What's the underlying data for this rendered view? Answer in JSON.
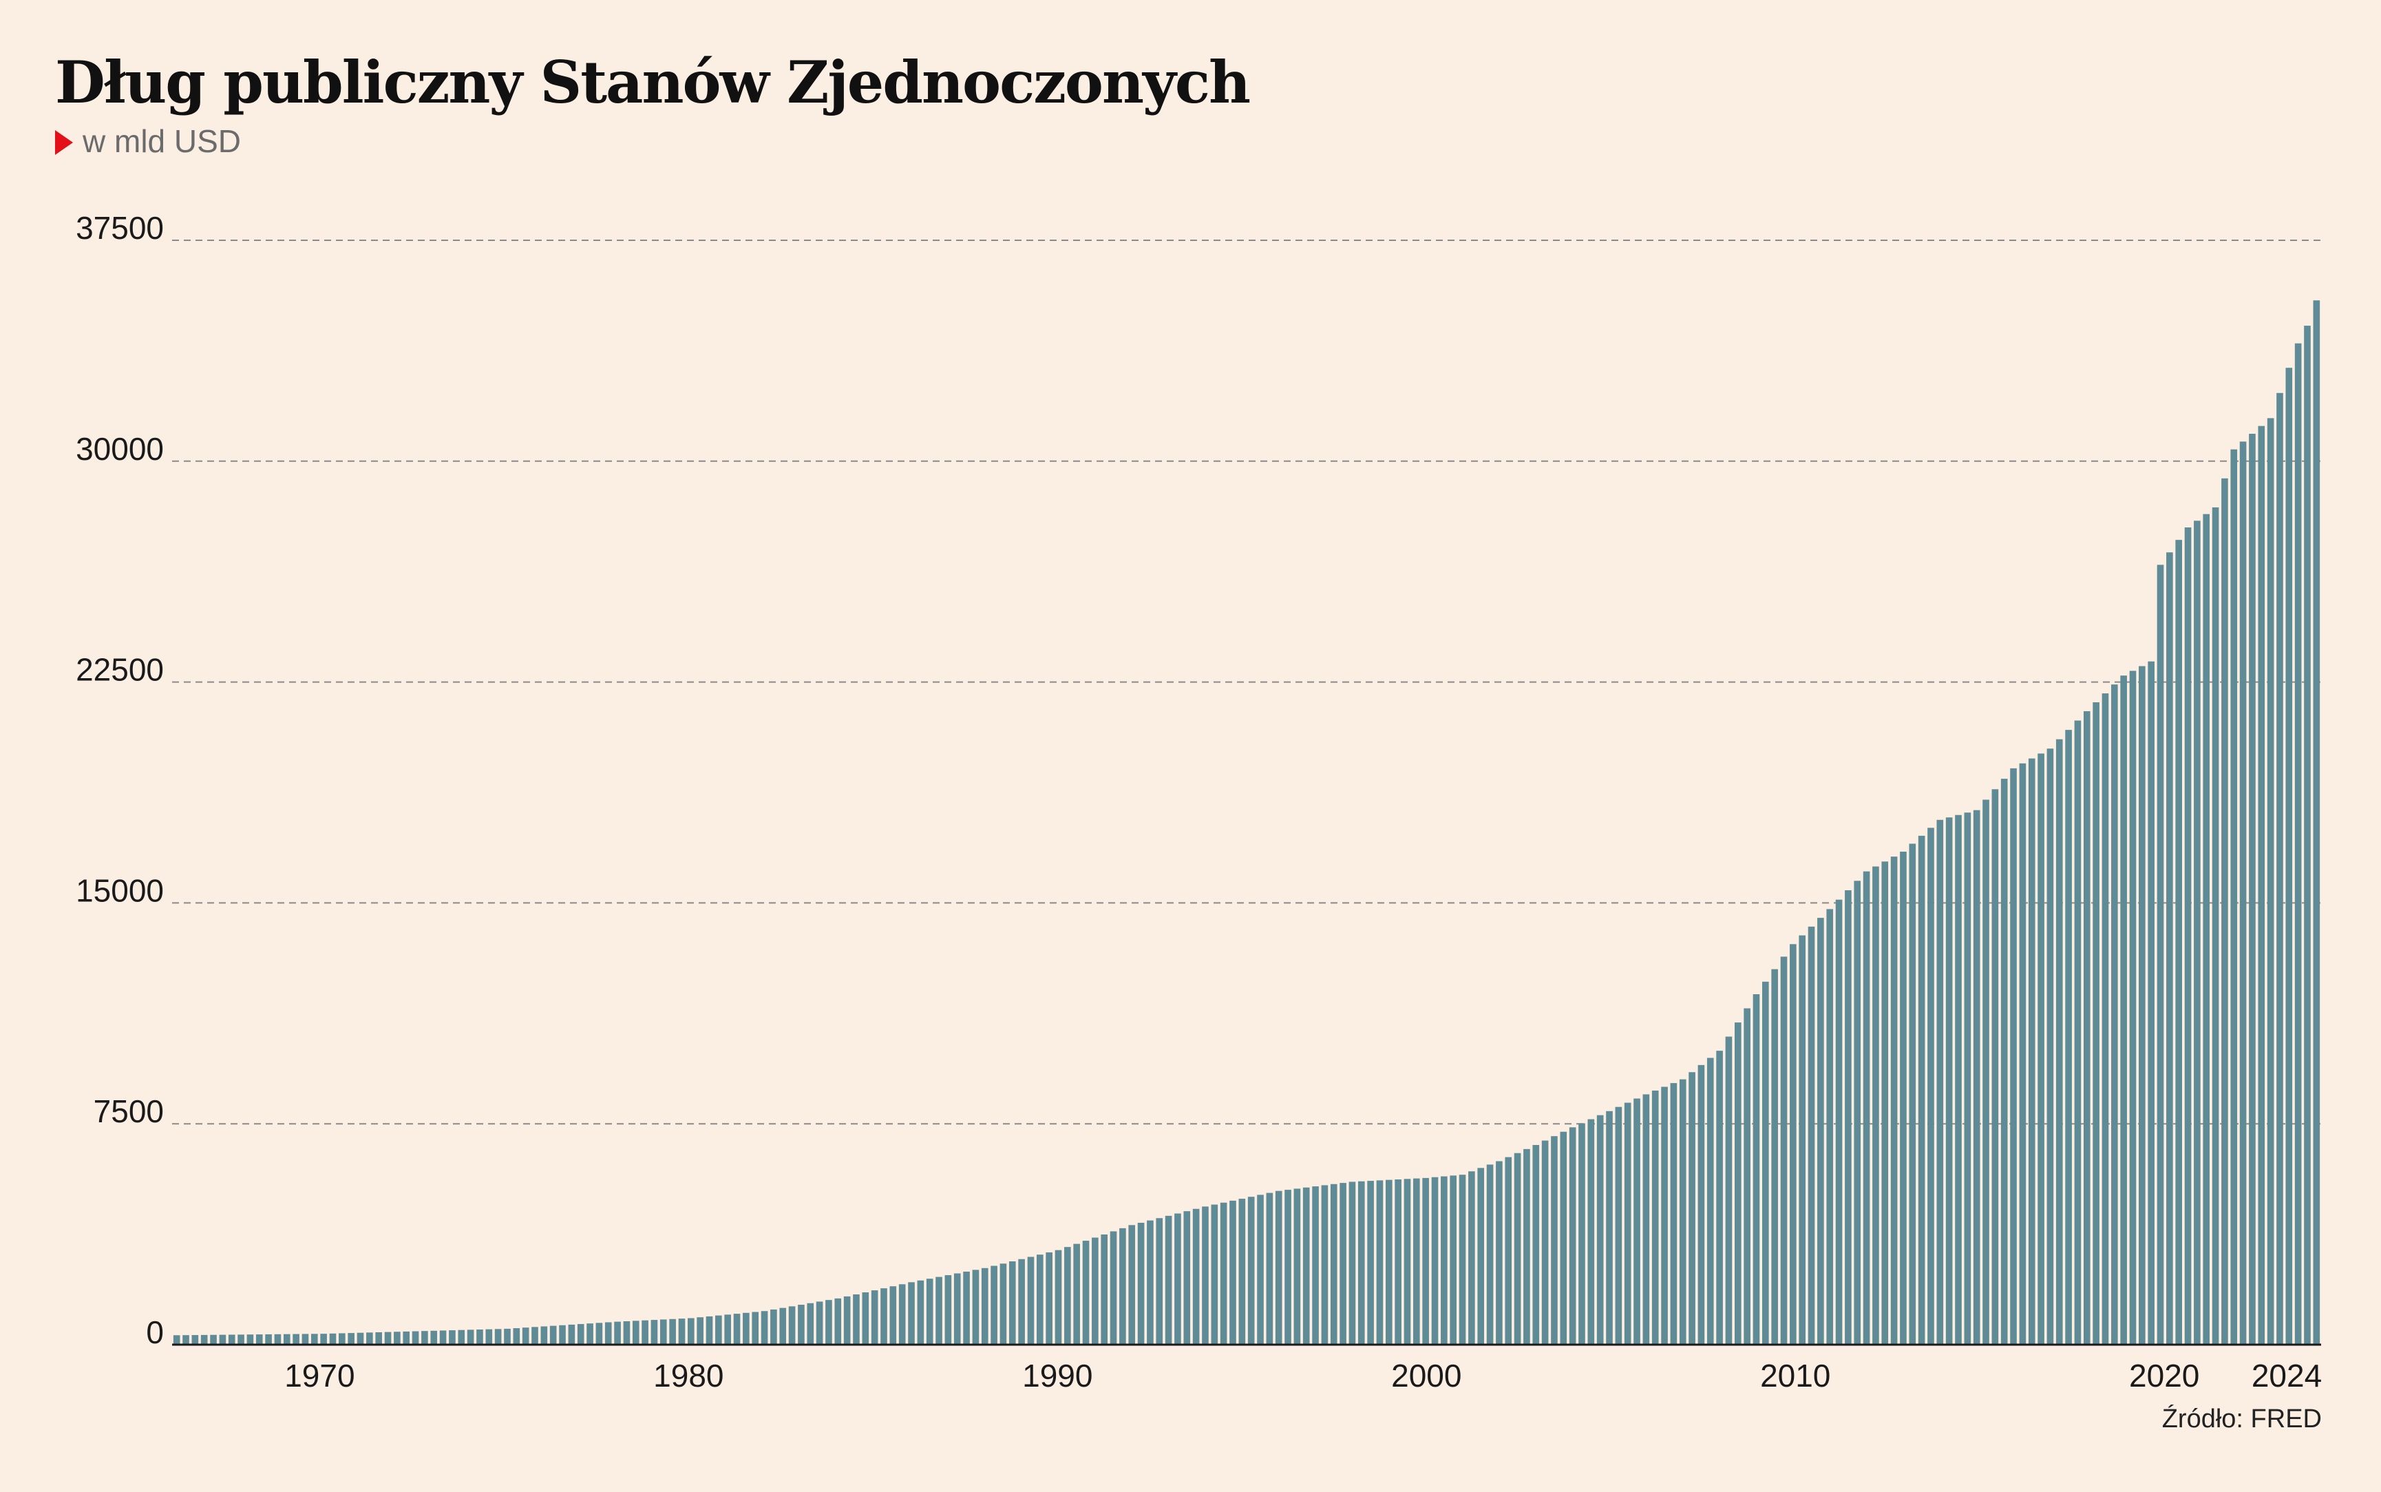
{
  "header": {
    "title": "Dług publiczny Stanów Zjednoczonych",
    "subtitle": "w mld USD"
  },
  "footer": {
    "source": "Źródło: FRED"
  },
  "colors": {
    "background": "#FBEEE2",
    "bar": "#5E8B96",
    "marker": "#E3101A",
    "grid": "#8a8a8a"
  },
  "chart_data": {
    "type": "bar",
    "title": "Dług publiczny Stanów Zjednoczonych",
    "subtitle": "w mld USD",
    "xlabel": "",
    "ylabel": "",
    "ylim": [
      0,
      37500
    ],
    "yticks": [
      "0",
      "7500",
      "15000",
      "22500",
      "30000",
      "37500"
    ],
    "xticks": [
      "1970",
      "1980",
      "1990",
      "2000",
      "2010",
      "2020",
      "2024"
    ],
    "x_start": "1966-Q1",
    "x_end": "2024-Q2",
    "frequency": "quarterly",
    "grid": "horizontal dashed",
    "anchors": [
      [
        1966.0,
        320
      ],
      [
        1970.0,
        370
      ],
      [
        1975.0,
        540
      ],
      [
        1978.0,
        780
      ],
      [
        1980.0,
        900
      ],
      [
        1982.0,
        1140
      ],
      [
        1984.0,
        1570
      ],
      [
        1986.0,
        2120
      ],
      [
        1988.0,
        2600
      ],
      [
        1990.0,
        3210
      ],
      [
        1992.0,
        4060
      ],
      [
        1994.0,
        4690
      ],
      [
        1996.0,
        5220
      ],
      [
        1998.0,
        5530
      ],
      [
        2000.0,
        5660
      ],
      [
        2001.0,
        5770
      ],
      [
        2002.0,
        6230
      ],
      [
        2003.0,
        6780
      ],
      [
        2004.0,
        7380
      ],
      [
        2005.0,
        7930
      ],
      [
        2006.0,
        8500
      ],
      [
        2007.0,
        9010
      ],
      [
        2008.0,
        9980
      ],
      [
        2009.0,
        11900
      ],
      [
        2010.0,
        13600
      ],
      [
        2011.0,
        14790
      ],
      [
        2012.0,
        16070
      ],
      [
        2013.0,
        16740
      ],
      [
        2014.0,
        17820
      ],
      [
        2015.0,
        18150
      ],
      [
        2016.0,
        19570
      ],
      [
        2017.0,
        20240
      ],
      [
        2018.0,
        21510
      ],
      [
        2019.0,
        22720
      ],
      [
        2019.75,
        23200
      ],
      [
        2020.0,
        26480
      ],
      [
        2020.75,
        27750
      ],
      [
        2021.5,
        28430
      ],
      [
        2022.0,
        30400
      ],
      [
        2023.0,
        31460
      ],
      [
        2023.5,
        33170
      ],
      [
        2023.75,
        34000
      ],
      [
        2024.0,
        34600
      ],
      [
        2024.25,
        35460
      ],
      [
        2024.5,
        35950
      ]
    ]
  }
}
